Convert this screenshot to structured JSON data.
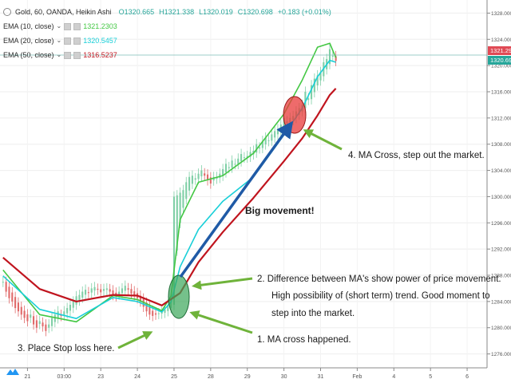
{
  "header": {
    "symbol": "Gold, 60, OANDA, Heikin Ashi",
    "open": "O1320.665",
    "high": "H1321.338",
    "low": "L1320.019",
    "close": "C1320.698",
    "change": "+0.183 (+0.01%)"
  },
  "indicators": [
    {
      "label": "EMA (10, close)",
      "value": "1321.2303",
      "color": "#43c743"
    },
    {
      "label": "EMA (20, close)",
      "value": "1320.5457",
      "color": "#19cfd8"
    },
    {
      "label": "EMA (50, close)",
      "value": "1316.5237",
      "color": "#c0141e"
    }
  ],
  "colors": {
    "up_candle": "#7fcfa6",
    "down_candle": "#e06a6a",
    "ema10": "#43c743",
    "ema20": "#19cfd8",
    "ema50": "#c0141e",
    "arrow_big": "#1f5aa6",
    "arrow_small": "#6fb33a",
    "circle_green": "#3aa65a",
    "circle_red": "#e83a3a",
    "price_tag_red": "#e04a55",
    "price_tag_green": "#26a69a"
  },
  "price_tags": [
    {
      "value": "1321.293",
      "color": "#e04a55"
    },
    {
      "value": "1320.698",
      "color": "#26a69a"
    }
  ],
  "chart_data": {
    "type": "line",
    "title": "Gold, 60, OANDA, Heikin Ashi",
    "ylim": [
      1274,
      1330
    ],
    "y_ticks": [
      "1276.000",
      "1280.000",
      "1284.000",
      "1288.000",
      "1292.000",
      "1296.000",
      "1300.000",
      "1304.000",
      "1308.000",
      "1312.000",
      "1316.000",
      "1320.000",
      "1324.000",
      "1328.000"
    ],
    "y_tick_values": [
      1276,
      1280,
      1284,
      1288,
      1292,
      1296,
      1300,
      1304,
      1308,
      1312,
      1316,
      1320,
      1324,
      1328
    ],
    "x_tick_labels": [
      "21",
      "03:00",
      "23",
      "24",
      "25",
      "28",
      "29",
      "30",
      "31",
      "Feb",
      "4",
      "5",
      "6"
    ],
    "x_tick_index": [
      8,
      20,
      32,
      44,
      56,
      68,
      80,
      92,
      104,
      116,
      128,
      140,
      152
    ],
    "x_range": [
      -1,
      158
    ],
    "grid": true,
    "series": [
      {
        "name": "EMA (10, close)",
        "x": [
          0,
          12,
          24,
          36,
          44,
          52,
          55,
          58,
          64,
          72,
          82,
          92,
          98,
          103,
          107,
          109
        ],
        "values": [
          1288.8,
          1282.0,
          1280.9,
          1284.9,
          1284.3,
          1282.6,
          1284.8,
          1296.5,
          1302.2,
          1303.2,
          1306.6,
          1312.6,
          1317.8,
          1322.8,
          1323.4,
          1321.2
        ]
      },
      {
        "name": "EMA (20, close)",
        "x": [
          0,
          12,
          24,
          36,
          44,
          52,
          55,
          58,
          64,
          72,
          82,
          92,
          98,
          103,
          107,
          109
        ],
        "values": [
          1287.9,
          1282.8,
          1281.4,
          1284.6,
          1284.0,
          1282.4,
          1283.9,
          1289.3,
          1295.0,
          1299.3,
          1303.0,
          1309.4,
          1313.5,
          1318.3,
          1320.8,
          1320.5
        ]
      },
      {
        "name": "EMA (50, close)",
        "x": [
          0,
          12,
          24,
          36,
          44,
          52,
          58,
          64,
          72,
          82,
          92,
          98,
          103,
          107,
          109
        ],
        "values": [
          1290.7,
          1285.9,
          1284.0,
          1285.0,
          1284.9,
          1283.4,
          1285.3,
          1290.0,
          1294.6,
          1299.8,
          1305.4,
          1308.9,
          1312.4,
          1315.5,
          1316.5
        ]
      }
    ],
    "candles": {
      "x_start": 0,
      "close": [
        1287.0,
        1285.5,
        1284.5,
        1284.0,
        1283.0,
        1282.5,
        1282.0,
        1281.5,
        1281.0,
        1282.0,
        1280.5,
        1280.0,
        1281.0,
        1280.2,
        1279.5,
        1280.5,
        1281.5,
        1282.0,
        1282.5,
        1281.8,
        1282.5,
        1283.0,
        1283.5,
        1284.0,
        1284.8,
        1285.0,
        1285.5,
        1285.8,
        1285.3,
        1286.0,
        1286.2,
        1285.8,
        1285.4,
        1285.9,
        1286.0,
        1285.5,
        1285.0,
        1284.8,
        1285.5,
        1286.0,
        1286.4,
        1285.8,
        1285.2,
        1285.0,
        1284.5,
        1284.0,
        1283.2,
        1282.5,
        1282.0,
        1281.8,
        1282.0,
        1282.2,
        1282.4,
        1282.8,
        1283.5,
        1284.0,
        1300.0,
        1300.2,
        1300.6,
        1301.0,
        1302.2,
        1303.0,
        1303.2,
        1302.8,
        1303.5,
        1304.0,
        1303.2,
        1302.5,
        1302.0,
        1303.0,
        1303.0,
        1303.5,
        1304.2,
        1305.0,
        1304.5,
        1305.5,
        1305.0,
        1305.8,
        1306.5,
        1306.0,
        1306.2,
        1306.8,
        1307.0,
        1308.0,
        1307.5,
        1308.5,
        1309.0,
        1308.6,
        1309.5,
        1310.0,
        1310.3,
        1311.0,
        1312.0,
        1311.5,
        1312.0,
        1312.3,
        1313.0,
        1313.5,
        1314.0,
        1316.0,
        1315.0,
        1317.0,
        1318.0,
        1318.5,
        1319.0,
        1320.5,
        1321.0,
        1322.5,
        1321.5,
        1320.7
      ]
    },
    "annotations": [
      "1.   MA cross happened.",
      "2.   Difference between MA's show power of price movement.",
      "High possibility of (short term) trend. Good moment to",
      "step into the market.",
      "3.   Place Stop loss here.",
      "4.   MA Cross, step out the market.",
      "Big movement!"
    ]
  }
}
